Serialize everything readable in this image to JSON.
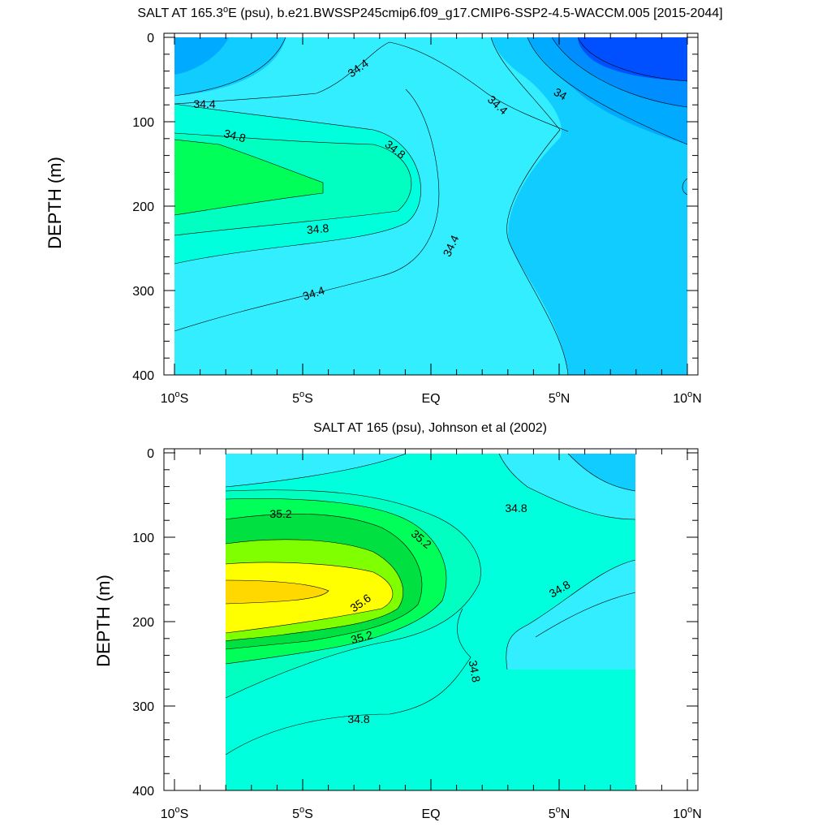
{
  "chart_data": [
    {
      "type": "contour",
      "title_main": "SALT AT 165.3",
      "title_deg": "o",
      "title_rest": "E (psu), b.e21.BWSSP245cmip6.f09_g17.CMIP6-SSP2-4.5-WACCM.005 [2015-2044]",
      "ylabel": "DEPTH (m)",
      "xlim": [
        -10,
        10
      ],
      "ylim": [
        0,
        400
      ],
      "yticks": [
        "0",
        "100",
        "200",
        "300",
        "400"
      ],
      "xticks": [
        {
          "v": "10",
          "deg": "o",
          "h": "S"
        },
        {
          "v": "5",
          "deg": "o",
          "h": "S"
        },
        {
          "v": "EQ",
          "deg": "",
          "h": ""
        },
        {
          "v": "5",
          "deg": "o",
          "h": "N"
        },
        {
          "v": "10",
          "deg": "o",
          "h": "N"
        }
      ],
      "contour_labels": [
        "34.4",
        "34.4",
        "34.4",
        "34",
        "34.8",
        "34.8",
        "34.8",
        "34.4",
        "34.4"
      ]
    },
    {
      "type": "contour",
      "title_main": "SALT AT 165 (psu), Johnson et al (2002)",
      "ylabel": "DEPTH (m)",
      "xlim": [
        -10,
        10
      ],
      "ylim": [
        0,
        400
      ],
      "yticks": [
        "0",
        "100",
        "200",
        "300",
        "400"
      ],
      "xticks": [
        {
          "v": "10",
          "deg": "o",
          "h": "S"
        },
        {
          "v": "5",
          "deg": "o",
          "h": "S"
        },
        {
          "v": "EQ",
          "deg": "",
          "h": ""
        },
        {
          "v": "5",
          "deg": "o",
          "h": "N"
        },
        {
          "v": "10",
          "deg": "o",
          "h": "N"
        }
      ],
      "contour_labels": [
        "35.2",
        "35.2",
        "34.8",
        "35.6",
        "35.2",
        "34.8",
        "34.8",
        "34.8"
      ]
    }
  ]
}
